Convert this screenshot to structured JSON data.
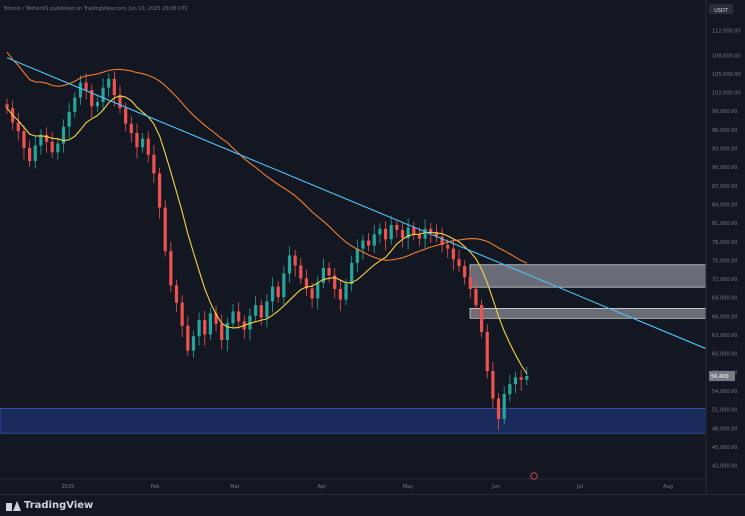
{
  "header": {
    "text": "Bitcoin / TetherUS published on TradingView.com, Jun 10, 2025 20:00 UTC",
    "symbol_badge": "USDT"
  },
  "footer": {
    "brand": "TradingView"
  },
  "colors": {
    "background": "#131722",
    "up": "#26a69a",
    "down": "#ef5350",
    "ma_short": "#f5d142",
    "ma_long": "#ef7d32",
    "trendline": "#4fc3f7",
    "resistance_zone": "#b2b5be",
    "support_zone": "#1a2a5c"
  },
  "chart_data": {
    "type": "candlestick",
    "x_ticks": [
      "2025",
      "Feb",
      "Mar",
      "Apr",
      "May",
      "Jun",
      "Jul",
      "Aug"
    ],
    "y_ticks": [
      112000,
      108000,
      105000,
      102000,
      99000,
      96000,
      93000,
      90000,
      87000,
      84000,
      81000,
      78000,
      75000,
      72000,
      69000,
      66000,
      63000,
      60000,
      57000,
      54000,
      51000,
      48000,
      45000,
      42000
    ],
    "ylim": [
      40000,
      114000
    ],
    "last_price_label": "56,400",
    "closes": [
      99500,
      97200,
      95800,
      93100,
      91000,
      93500,
      95200,
      94100,
      92400,
      93800,
      96500,
      98900,
      101200,
      103600,
      102400,
      99800,
      100500,
      102800,
      104200,
      101600,
      99500,
      97000,
      95500,
      93200,
      94600,
      92000,
      89000,
      83500,
      76500,
      71000,
      68200,
      64500,
      60500,
      62800,
      65400,
      63100,
      66500,
      64800,
      62200,
      64900,
      66800,
      65200,
      63900,
      66100,
      67800,
      65800,
      68400,
      70800,
      69100,
      72900,
      75800,
      74200,
      72100,
      70500,
      68900,
      71400,
      73800,
      72600,
      70400,
      68700,
      71200,
      74600,
      76900,
      78200,
      77400,
      79200,
      80100,
      78400,
      80700,
      79900,
      78600,
      80300,
      79100,
      78500,
      80100,
      79600,
      78800,
      77500,
      76900,
      75200,
      74100,
      72300,
      70400,
      67800,
      63500,
      57200,
      52800,
      49500,
      53500,
      55100,
      56200,
      55800,
      56400
    ],
    "moving_averages": [
      {
        "period": "50",
        "color": "#f5d142"
      },
      {
        "period": "200",
        "color": "#ef7d32"
      }
    ],
    "zones": [
      {
        "type": "resistance",
        "top": 74300,
        "bottom": 70700
      },
      {
        "type": "resistance",
        "top": 67300,
        "bottom": 65700
      },
      {
        "type": "support",
        "top": 51200,
        "bottom": 47200
      }
    ],
    "trendline": {
      "start": {
        "index": 0,
        "value": 107600
      },
      "end": {
        "index": 92,
        "value": 72800
      }
    }
  }
}
